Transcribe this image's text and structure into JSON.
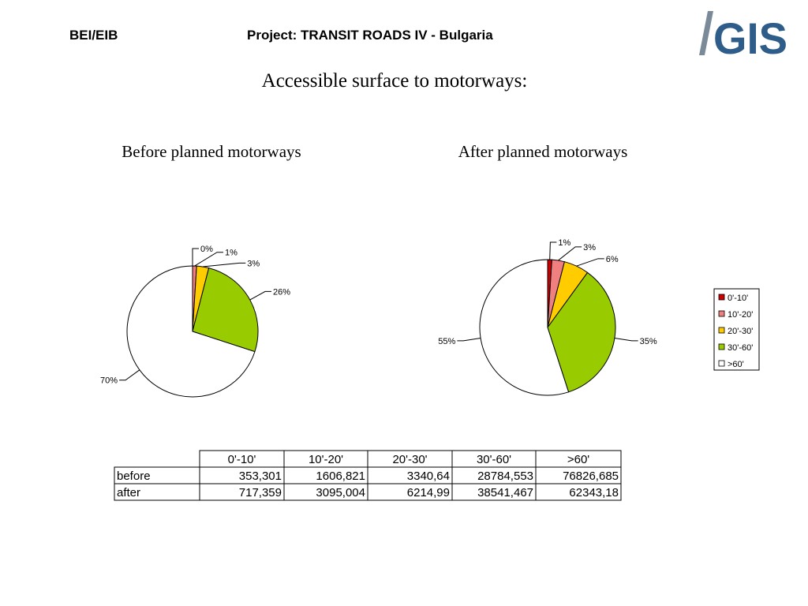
{
  "header": {
    "left": "BEI/EIB",
    "project": "Project: TRANSIT ROADS IV - Bulgaria",
    "logo": "GIS"
  },
  "title": "Accessible surface to motorways:",
  "chart_data": [
    {
      "type": "pie",
      "title": "Before planned motorways",
      "categories": [
        "0'-10'",
        "10'-20'",
        "20'-30'",
        "30'-60'",
        ">60'"
      ],
      "values": [
        0,
        1,
        3,
        26,
        70
      ],
      "value_labels": [
        "0%",
        "1%",
        "3%",
        "26%",
        "70%"
      ],
      "colors": [
        "#cc0000",
        "#f07f80",
        "#ffcc00",
        "#99cc00",
        "#ffffff"
      ],
      "legend": false
    },
    {
      "type": "pie",
      "title": "After planned motorways",
      "categories": [
        "0'-10'",
        "10'-20'",
        "20'-30'",
        "30'-60'",
        ">60'"
      ],
      "values": [
        1,
        3,
        6,
        35,
        55
      ],
      "value_labels": [
        "1%",
        "3%",
        "6%",
        "35%",
        "55%"
      ],
      "colors": [
        "#cc0000",
        "#f07f80",
        "#ffcc00",
        "#99cc00",
        "#ffffff"
      ],
      "legend": true
    }
  ],
  "table": {
    "row_labels": [
      "before",
      "after"
    ],
    "rows": [
      [
        "353,301",
        "1606,821",
        "3340,64",
        "28784,553",
        "76826,685"
      ],
      [
        "717,359",
        "3095,004",
        "6214,99",
        "38541,467",
        "62343,18"
      ]
    ]
  }
}
